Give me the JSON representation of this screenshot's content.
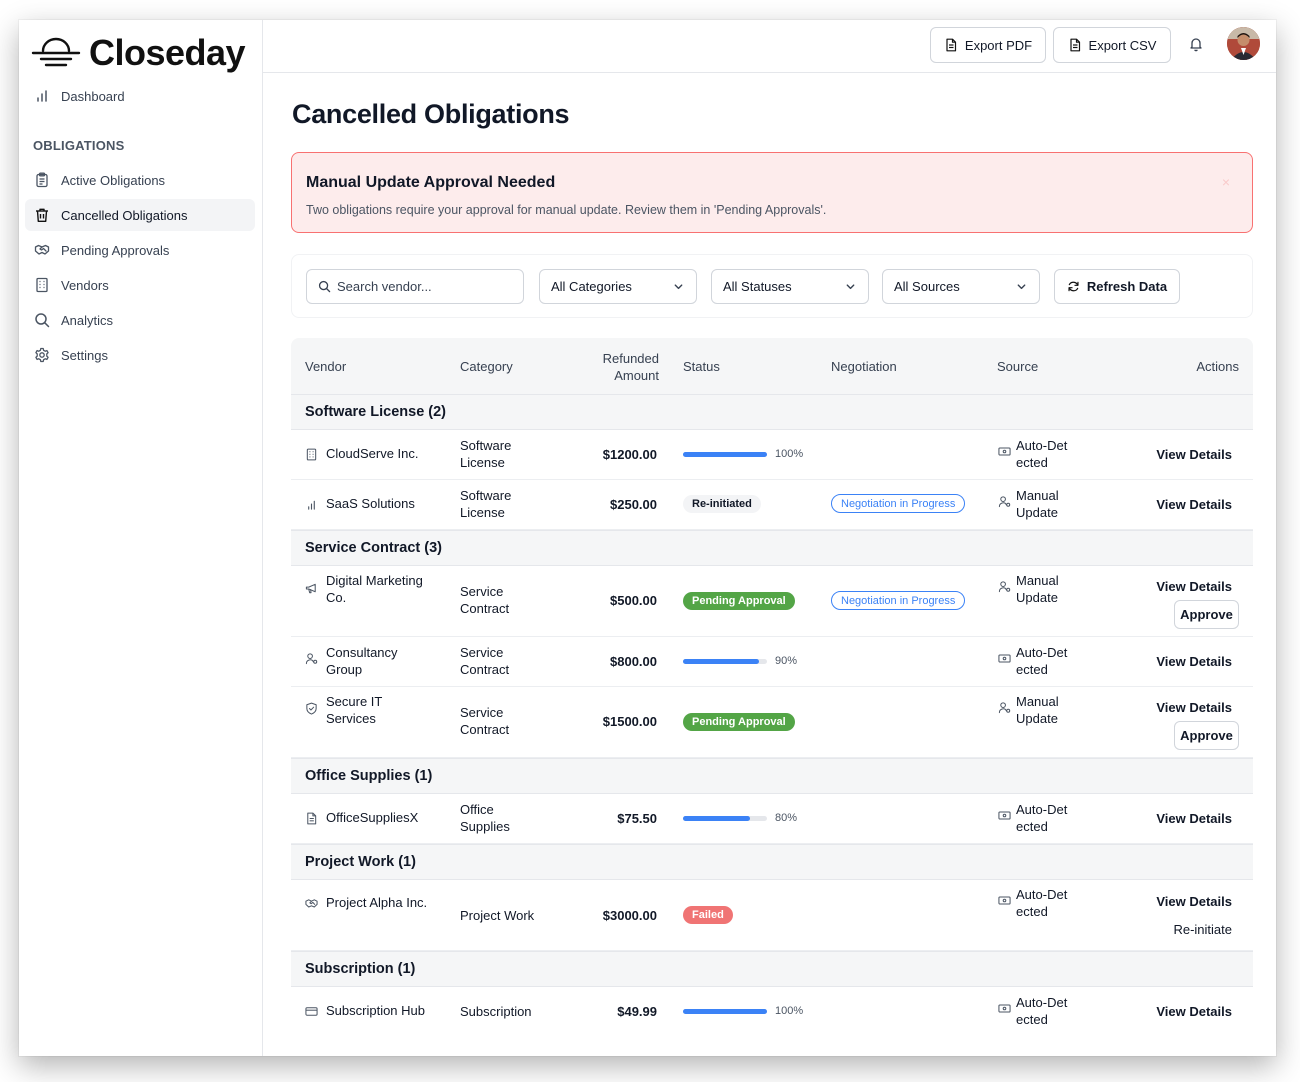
{
  "app": {
    "name": "Closeday"
  },
  "sidebar": {
    "dashboard": "Dashboard",
    "section_label": "OBLIGATIONS",
    "items": [
      {
        "label": "Active Obligations",
        "icon": "clipboard-icon"
      },
      {
        "label": "Cancelled Obligations",
        "icon": "trash-icon",
        "active": true
      },
      {
        "label": "Pending Approvals",
        "icon": "handshake-icon"
      },
      {
        "label": "Vendors",
        "icon": "building-icon"
      },
      {
        "label": "Analytics",
        "icon": "search-icon"
      },
      {
        "label": "Settings",
        "icon": "gear-icon"
      }
    ]
  },
  "header": {
    "export_pdf": "Export PDF",
    "export_csv": "Export CSV"
  },
  "page": {
    "title": "Cancelled Obligations"
  },
  "alert": {
    "title": "Manual Update Approval Needed",
    "text": "Two obligations require your approval for manual update. Review them in 'Pending Approvals'.",
    "close": "×"
  },
  "filters": {
    "search_placeholder": "Search vendor...",
    "category": "All Categories",
    "status": "All Statuses",
    "source": "All Sources",
    "refresh": "Refresh Data"
  },
  "table": {
    "headers": {
      "vendor": "Vendor",
      "category": "Category",
      "refunded_line1": "Refunded",
      "refunded_line2": "Amount",
      "status": "Status",
      "negotiation": "Negotiation",
      "source": "Source",
      "actions": "Actions"
    },
    "groups": [
      {
        "title": "Software License (2)"
      },
      {
        "title": "Service Contract (3)"
      },
      {
        "title": "Office Supplies (1)"
      },
      {
        "title": "Project Work (1)"
      },
      {
        "title": "Subscription (1)"
      }
    ],
    "rows": [
      {
        "vendor": "CloudServe Inc.",
        "vendor_icon": "building-icon",
        "category_1": "Software",
        "category_2": "License",
        "amount": "$1200.00",
        "progress": 1.0,
        "pct": "100%",
        "source_1": "Auto-Det",
        "source_2": "ected",
        "action": "View Details"
      },
      {
        "vendor": "SaaS Solutions",
        "vendor_icon": "bar-chart-icon",
        "category_1": "Software",
        "category_2": "License",
        "amount": "$250.00",
        "status": "Re-initiated",
        "negotiation": "Negotiation in Progress",
        "source_1": "Manual",
        "source_2": "Update",
        "action": "View Details"
      },
      {
        "vendor_1": "Digital Marketing",
        "vendor_2": "Co.",
        "vendor_icon": "megaphone-icon",
        "category_1": "Service",
        "category_2": "Contract",
        "amount": "$500.00",
        "status": "Pending Approval",
        "negotiation": "Negotiation in Progress",
        "source_1": "Manual",
        "source_2": "Update",
        "action": "View Details",
        "approve": "Approve"
      },
      {
        "vendor_1": "Consultancy",
        "vendor_2": "Group",
        "vendor_icon": "users-icon",
        "category_1": "Service",
        "category_2": "Contract",
        "amount": "$800.00",
        "progress": 0.9,
        "pct": "90%",
        "source_1": "Auto-Det",
        "source_2": "ected",
        "action": "View Details"
      },
      {
        "vendor_1": "Secure IT",
        "vendor_2": "Services",
        "vendor_icon": "shield-icon",
        "category_1": "Service",
        "category_2": "Contract",
        "amount": "$1500.00",
        "status": "Pending Approval",
        "source_1": "Manual",
        "source_2": "Update",
        "action": "View Details",
        "approve": "Approve"
      },
      {
        "vendor": "OfficeSuppliesX",
        "vendor_icon": "document-icon",
        "category_1": "Office",
        "category_2": "Supplies",
        "amount": "$75.50",
        "progress": 0.8,
        "pct": "80%",
        "source_1": "Auto-Det",
        "source_2": "ected",
        "action": "View Details"
      },
      {
        "vendor": "Project Alpha Inc.",
        "vendor_icon": "handshake-icon",
        "category": "Project Work",
        "amount": "$3000.00",
        "status": "Failed",
        "source_1": "Auto-Det",
        "source_2": "ected",
        "action": "View Details",
        "action_2": "Re-initiate"
      },
      {
        "vendor": "Subscription Hub",
        "vendor_icon": "credit-card-icon",
        "category": "Subscription",
        "amount": "$49.99",
        "progress": 1.0,
        "pct": "100%",
        "source_1": "Auto-Det",
        "source_2": "ected",
        "action": "View Details"
      }
    ]
  },
  "colors": {
    "accent_blue": "#3b82f6",
    "success_green": "#53a546",
    "danger_red": "#f07474",
    "alert_bg": "#fdecec",
    "alert_border": "#f87171"
  }
}
